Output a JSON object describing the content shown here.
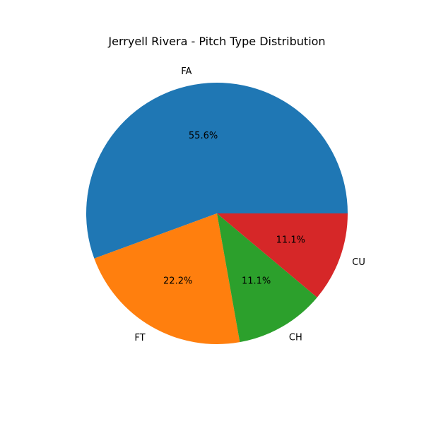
{
  "chart_data": {
    "type": "pie",
    "title": "Jerryell Rivera - Pitch Type Distribution",
    "categories": [
      "FA",
      "FT",
      "CH",
      "CU"
    ],
    "values": [
      55.6,
      22.2,
      11.1,
      11.1
    ],
    "percent_labels": [
      "55.6%",
      "22.2%",
      "11.1%",
      "11.1%"
    ],
    "colors": [
      "#1f77b4",
      "#ff7f0e",
      "#2ca02c",
      "#d62728"
    ],
    "start_angle_deg": 0,
    "direction": "counterclockwise",
    "legend": "none"
  }
}
